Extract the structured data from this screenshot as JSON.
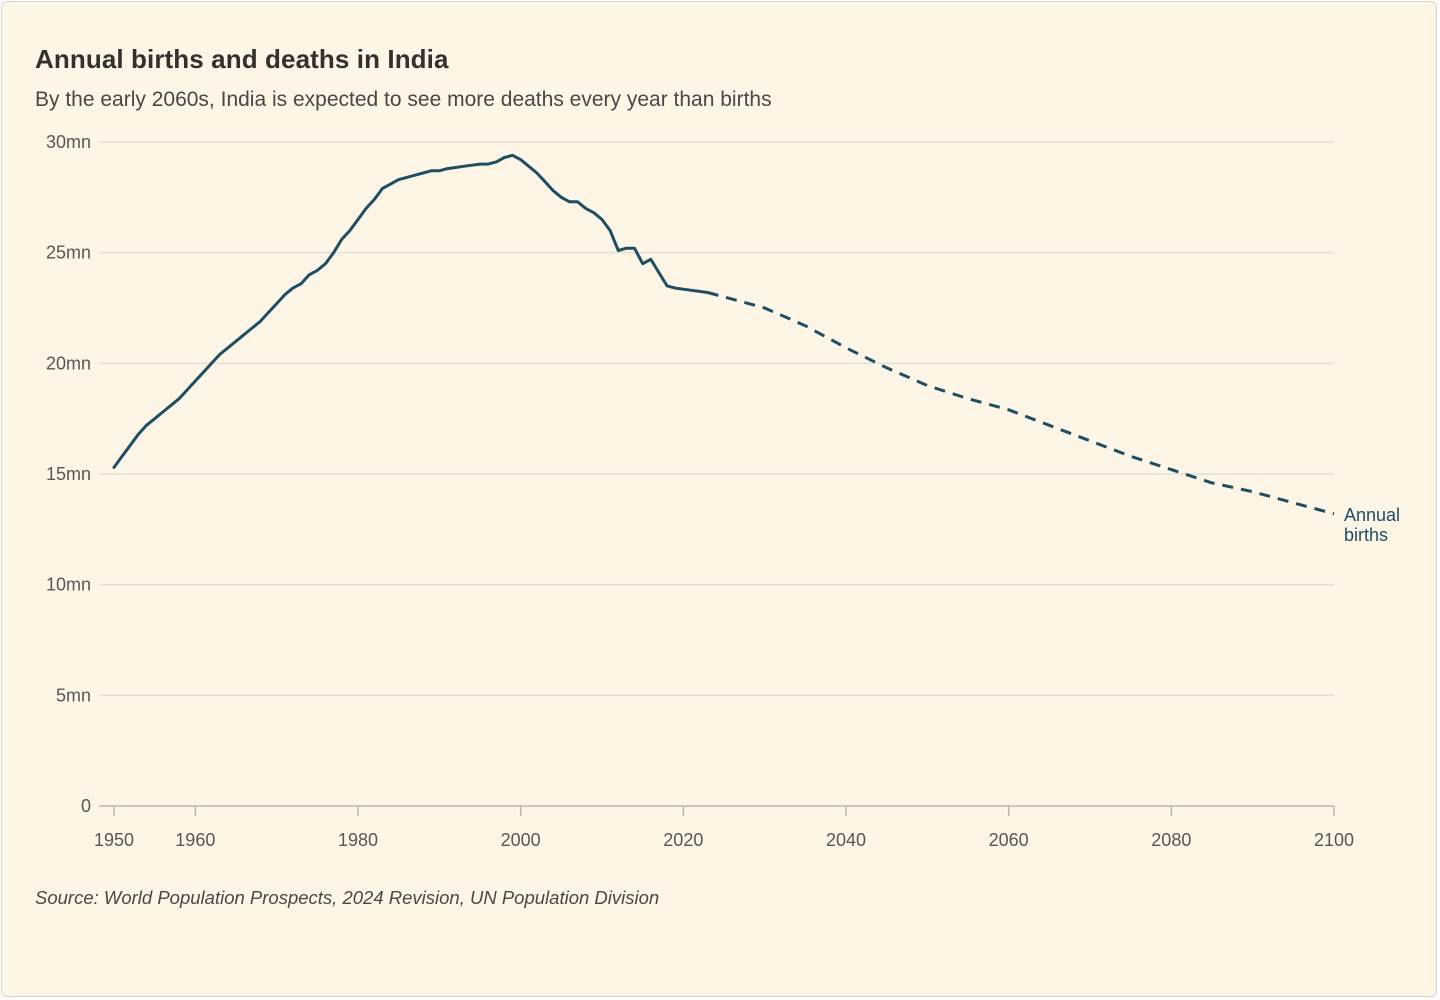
{
  "header": {
    "title": "Annual births and deaths in India",
    "subtitle": "By the early 2060s, India is expected to see more deaths every year than births"
  },
  "footer": {
    "source": "Source: World Population Prospects, 2024 Revision, UN Population Division"
  },
  "colors": {
    "background": "#fdf5e6",
    "gridline": "#e6dfd4",
    "axis": "#bdb7b0",
    "series": "#1f4e63"
  },
  "chart_data": {
    "type": "line",
    "title": "Annual births and deaths in India",
    "xlabel": "",
    "ylabel": "",
    "xlim": [
      1950,
      2100
    ],
    "ylim": [
      0,
      30
    ],
    "x_ticks": [
      1950,
      1960,
      1980,
      2000,
      2020,
      2040,
      2060,
      2080,
      2100
    ],
    "x_tick_labels": [
      "1950",
      "1960",
      "1980",
      "2000",
      "2020",
      "2040",
      "2060",
      "2080",
      "2100"
    ],
    "y_ticks": [
      0,
      5,
      10,
      15,
      20,
      25,
      30
    ],
    "y_tick_labels": [
      "0",
      "5mn",
      "10mn",
      "15mn",
      "20mn",
      "25mn",
      "30mn"
    ],
    "grid": true,
    "series": [
      {
        "name": "Annual births",
        "label_lines": [
          "Annual",
          "births"
        ],
        "unit": "million",
        "estimates": {
          "x": [
            1950,
            1951,
            1952,
            1953,
            1954,
            1955,
            1956,
            1957,
            1958,
            1959,
            1960,
            1961,
            1962,
            1963,
            1964,
            1965,
            1966,
            1967,
            1968,
            1969,
            1970,
            1971,
            1972,
            1973,
            1974,
            1975,
            1976,
            1977,
            1978,
            1979,
            1980,
            1981,
            1982,
            1983,
            1984,
            1985,
            1986,
            1987,
            1988,
            1989,
            1990,
            1991,
            1992,
            1993,
            1994,
            1995,
            1996,
            1997,
            1998,
            1999,
            2000,
            2001,
            2002,
            2003,
            2004,
            2005,
            2006,
            2007,
            2008,
            2009,
            2010,
            2011,
            2012,
            2013,
            2014,
            2015,
            2016,
            2017,
            2018,
            2019,
            2020,
            2021,
            2022,
            2023
          ],
          "values": [
            15.3,
            15.8,
            16.3,
            16.8,
            17.2,
            17.5,
            17.8,
            18.1,
            18.4,
            18.8,
            19.2,
            19.6,
            20.0,
            20.4,
            20.7,
            21.0,
            21.3,
            21.6,
            21.9,
            22.3,
            22.7,
            23.1,
            23.4,
            23.6,
            24.0,
            24.2,
            24.5,
            25.0,
            25.6,
            26.0,
            26.5,
            27.0,
            27.4,
            27.9,
            28.1,
            28.3,
            28.4,
            28.5,
            28.6,
            28.7,
            28.7,
            28.8,
            28.85,
            28.9,
            28.95,
            29.0,
            29.0,
            29.1,
            29.3,
            29.4,
            29.2,
            28.9,
            28.6,
            28.2,
            27.8,
            27.5,
            27.3,
            27.3,
            27.0,
            26.8,
            26.5,
            26.0,
            25.1,
            25.2,
            25.2,
            24.5,
            24.7,
            24.1,
            23.5,
            23.4,
            23.35,
            23.3,
            23.25,
            23.2
          ],
          "style": "solid"
        },
        "projections": {
          "x": [
            2023,
            2025,
            2030,
            2035,
            2040,
            2045,
            2050,
            2055,
            2060,
            2065,
            2070,
            2075,
            2080,
            2085,
            2090,
            2095,
            2100
          ],
          "values": [
            23.2,
            23.0,
            22.5,
            21.7,
            20.7,
            19.8,
            19.0,
            18.4,
            17.9,
            17.2,
            16.5,
            15.8,
            15.2,
            14.6,
            14.2,
            13.7,
            13.2
          ],
          "style": "dashed"
        }
      }
    ]
  }
}
